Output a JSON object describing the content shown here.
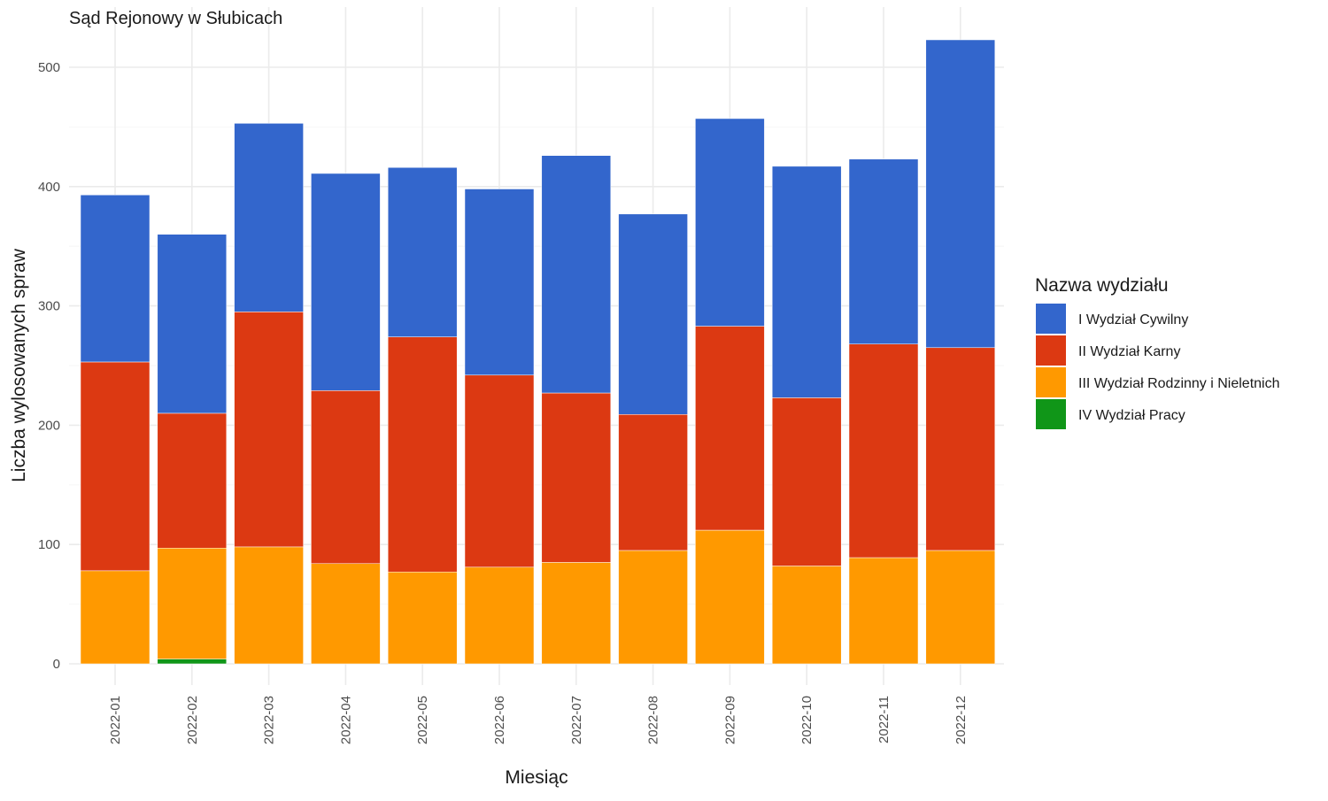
{
  "chart_data": {
    "type": "bar",
    "stacked": true,
    "title": "Sąd Rejonowy w Słubicach",
    "xlabel": "Miesiąc",
    "ylabel": "Liczba wylosowanych spraw",
    "ylim": [
      0,
      530
    ],
    "yticks": [
      0,
      100,
      200,
      300,
      400,
      500
    ],
    "grid": true,
    "legend_title": "Nazwa wydziału",
    "legend_position": "right",
    "categories": [
      "2022-01",
      "2022-02",
      "2022-03",
      "2022-04",
      "2022-05",
      "2022-06",
      "2022-07",
      "2022-08",
      "2022-09",
      "2022-10",
      "2022-11",
      "2022-12"
    ],
    "series": [
      {
        "name": "I Wydział Cywilny",
        "color": "#3366CC",
        "values": [
          140,
          150,
          158,
          182,
          142,
          156,
          199,
          168,
          174,
          194,
          155,
          258
        ]
      },
      {
        "name": "II Wydział Karny",
        "color": "#DC3912",
        "values": [
          175,
          113,
          197,
          145,
          197,
          161,
          142,
          114,
          171,
          141,
          179,
          170
        ]
      },
      {
        "name": "III Wydział Rodzinny i Nieletnich",
        "color": "#FF9900",
        "values": [
          78,
          93,
          98,
          84,
          77,
          81,
          85,
          95,
          112,
          82,
          89,
          95
        ]
      },
      {
        "name": "IV Wydział Pracy",
        "color": "#109618",
        "values": [
          0,
          4,
          0,
          0,
          0,
          0,
          0,
          0,
          0,
          0,
          0,
          0
        ]
      }
    ]
  }
}
